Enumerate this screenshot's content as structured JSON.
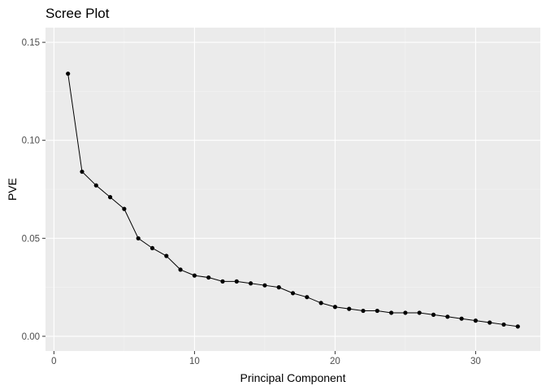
{
  "chart_data": {
    "type": "line",
    "title": "Scree Plot",
    "xlabel": "Principal Component",
    "ylabel": "PVE",
    "xlim": [
      -0.6,
      34.6
    ],
    "ylim": [
      -0.0075,
      0.1575
    ],
    "x_ticks": [
      0,
      10,
      20,
      30
    ],
    "x_tick_labels": [
      "0",
      "10",
      "20",
      "30"
    ],
    "y_ticks": [
      0.0,
      0.05,
      0.1,
      0.15
    ],
    "y_tick_labels": [
      "0.00",
      "0.05",
      "0.10",
      "0.15"
    ],
    "grid": true,
    "markers": true,
    "series": [
      {
        "x": [
          1,
          2,
          3,
          4,
          5,
          6,
          7,
          8,
          9,
          10,
          11,
          12,
          13,
          14,
          15,
          16,
          17,
          18,
          19,
          20,
          21,
          22,
          23,
          24,
          25,
          26,
          27,
          28,
          29,
          30,
          31,
          32,
          33
        ],
        "values": [
          0.134,
          0.084,
          0.077,
          0.071,
          0.065,
          0.05,
          0.045,
          0.041,
          0.034,
          0.031,
          0.03,
          0.028,
          0.028,
          0.027,
          0.026,
          0.025,
          0.022,
          0.02,
          0.017,
          0.015,
          0.014,
          0.013,
          0.013,
          0.012,
          0.012,
          0.012,
          0.011,
          0.01,
          0.009,
          0.008,
          0.007,
          0.006,
          0.005
        ]
      }
    ]
  },
  "colors": {
    "panel_bg": "#ebebeb",
    "grid_major": "#ffffff",
    "line": "#000000",
    "point": "#000000",
    "tick_mark": "#333333"
  }
}
